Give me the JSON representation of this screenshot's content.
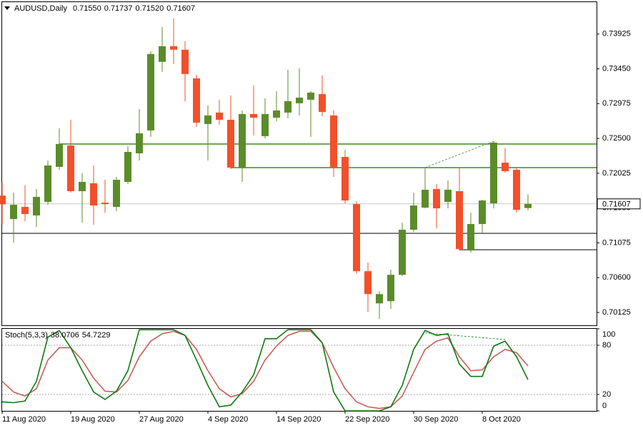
{
  "chart_data": [
    {
      "type": "candlestick",
      "title": "AUDUSD,Daily",
      "last_bar_labels": [
        "0.71550",
        "0.71737",
        "0.71520",
        "0.71607"
      ],
      "categories": [
        "11 Aug 2020",
        null,
        null,
        null,
        null,
        null,
        "19 Aug 2020",
        null,
        null,
        null,
        null,
        null,
        "27 Aug 2020",
        null,
        null,
        null,
        null,
        null,
        "4 Sep 2020",
        null,
        null,
        null,
        null,
        null,
        "14 Sep 2020",
        null,
        null,
        null,
        null,
        null,
        "22 Sep 2020",
        null,
        null,
        null,
        null,
        null,
        "30 Sep 2020",
        null,
        null,
        null,
        null,
        null,
        "8 Oct 2020",
        null,
        null,
        null,
        null
      ],
      "open": [
        0.7172,
        0.714,
        0.71566,
        0.71449,
        0.71634,
        0.72112,
        0.72404,
        0.7178,
        0.71888,
        0.71624,
        0.71566,
        0.71907,
        0.72297,
        0.72609,
        0.73545,
        0.73759,
        0.73711,
        0.7332,
        0.72697,
        0.72853,
        0.72755,
        0.72102,
        0.72833,
        0.72531,
        0.72784,
        0.72853,
        0.7298,
        0.73028,
        0.73106,
        0.72814,
        0.72248,
        0.71604,
        0.70688,
        0.70249,
        0.70279,
        0.70639,
        0.71254,
        0.71556,
        0.71809,
        0.71634,
        0.7178,
        0.70971,
        0.71332,
        0.71614,
        0.7217,
        0.72072,
        0.7155
      ],
      "high": [
        0.719,
        0.7176,
        0.71858,
        0.71809,
        0.72199,
        0.72638,
        0.72755,
        0.72024,
        0.72131,
        0.71936,
        0.71975,
        0.72394,
        0.72901,
        0.73691,
        0.74022,
        0.7414,
        0.73828,
        0.73369,
        0.7295,
        0.73028,
        0.73087,
        0.72882,
        0.73223,
        0.73048,
        0.73145,
        0.73437,
        0.73457,
        0.73145,
        0.7336,
        0.72882,
        0.72345,
        0.71643,
        0.70805,
        0.70415,
        0.70708,
        0.71351,
        0.7176,
        0.72102,
        0.71877,
        0.71926,
        0.72092,
        0.71487,
        0.71663,
        0.72462,
        0.72365,
        0.72102,
        0.71737
      ],
      "low": [
        0.7132,
        0.71078,
        0.7137,
        0.71292,
        0.71595,
        0.72072,
        0.7176,
        0.71351,
        0.71322,
        0.71488,
        0.71507,
        0.71877,
        0.72199,
        0.72521,
        0.73408,
        0.73516,
        0.73008,
        0.72658,
        0.72199,
        0.72687,
        0.72082,
        0.71907,
        0.72541,
        0.72502,
        0.72735,
        0.72775,
        0.72814,
        0.72521,
        0.72804,
        0.71975,
        0.71614,
        0.70658,
        0.70132,
        0.70035,
        0.70171,
        0.7062,
        0.71224,
        0.71546,
        0.71273,
        0.71546,
        0.70971,
        0.70941,
        0.71214,
        0.71546,
        0.72034,
        0.71488,
        0.7152
      ],
      "close": [
        0.716,
        0.71595,
        0.71468,
        0.71702,
        0.72131,
        0.72424,
        0.7178,
        0.71907,
        0.71585,
        0.71604,
        0.71936,
        0.72316,
        0.7257,
        0.73652,
        0.73759,
        0.73711,
        0.73379,
        0.72716,
        0.72814,
        0.72755,
        0.72102,
        0.72833,
        0.72784,
        0.72833,
        0.72882,
        0.73009,
        0.73057,
        0.73126,
        0.72862,
        0.72102,
        0.71653,
        0.70688,
        0.70376,
        0.70376,
        0.70639,
        0.71254,
        0.71585,
        0.718,
        0.71546,
        0.718,
        0.7099,
        0.71332,
        0.71653,
        0.72443,
        0.72053,
        0.71526,
        0.71607
      ],
      "up_color": "#5b8c2a",
      "down_color": "#f2502a",
      "ylim": [
        0.6995,
        0.7437
      ],
      "yticks": [
        0.73925,
        {
          "value": 0.7345,
          "label": "0.73450"
        },
        0.72975,
        {
          "value": 0.725,
          "label": "0.72500"
        },
        0.72025,
        {
          "value": 0.7155,
          "label": "0.71550"
        },
        0.71075,
        {
          "value": 0.706,
          "label": "0.70600"
        },
        0.70125
      ],
      "levels": [
        {
          "value": 0.72424,
          "start": 5,
          "color": "#3f8a1f"
        },
        {
          "value": 0.72102,
          "start": 20,
          "color": "#3f8a1f"
        },
        {
          "value": 0.71205,
          "start": 0,
          "color": "#555555"
        },
        {
          "value": 0.70981,
          "start": 40,
          "color": "#555555"
        }
      ],
      "trendlines": [
        {
          "from": [
            37,
            0.72102
          ],
          "to": [
            43,
            0.72462
          ],
          "color": "#3f8a1f"
        }
      ]
    },
    {
      "type": "line",
      "title": "Stoch(5,3,3)",
      "series": [
        {
          "name": "%K",
          "color": "#0f7a0f",
          "values": [
            11,
            10,
            12,
            36,
            90,
            98,
            77,
            49,
            23,
            14,
            24,
            49,
            99,
            99,
            99,
            99,
            92,
            62,
            31,
            5,
            7,
            23,
            44,
            88,
            88,
            99,
            99,
            99,
            83,
            23,
            0,
            0,
            0,
            0,
            5,
            31,
            75,
            98,
            92,
            94,
            57,
            42,
            42,
            79,
            85,
            66,
            38.0706
          ]
        },
        {
          "name": "%D",
          "color": "#c65f5a",
          "values": [
            36,
            23,
            18,
            27,
            62,
            77,
            77,
            62,
            40,
            24,
            23,
            37,
            66,
            85,
            94,
            97,
            92,
            75,
            49,
            27,
            17,
            21,
            36,
            62,
            79,
            92,
            97,
            97,
            83,
            53,
            27,
            11,
            5,
            3,
            5,
            18,
            47,
            75,
            85,
            89,
            66,
            49,
            50,
            66,
            75,
            71,
            54.7229
          ]
        }
      ],
      "ylim": [
        0,
        100
      ],
      "yticks": [
        0,
        20,
        80,
        100
      ],
      "levels": [
        20,
        80
      ],
      "trendlines": [
        {
          "from": [
            37,
            95
          ],
          "to": [
            44,
            87
          ],
          "color": "#0f7a0f"
        }
      ]
    }
  ]
}
